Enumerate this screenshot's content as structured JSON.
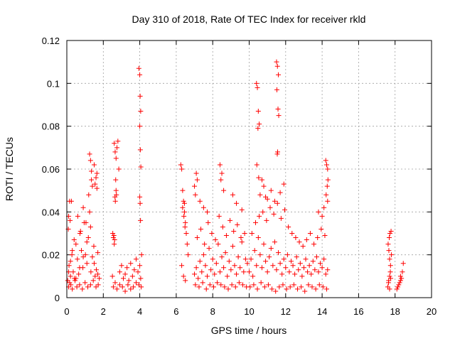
{
  "chart_data": {
    "type": "scatter",
    "title": "Day 310 of 2018, Rate Of TEC Index for receiver rkld",
    "xlabel": "GPS time / hours",
    "ylabel": "ROTI / TECUs",
    "xlim": [
      0,
      20
    ],
    "ylim": [
      0,
      0.12
    ],
    "x_ticks": [
      0,
      2,
      4,
      6,
      8,
      10,
      12,
      14,
      16,
      18,
      20
    ],
    "x_tick_labels": [
      "0",
      "2",
      "4",
      "6",
      "8",
      "10",
      "12",
      "14",
      "16",
      "18",
      "20"
    ],
    "y_ticks": [
      0,
      0.02,
      0.04,
      0.06,
      0.08,
      0.1,
      0.12
    ],
    "y_tick_labels": [
      "0",
      "0.02",
      "0.04",
      "0.06",
      "0.08",
      "0.1",
      "0.12"
    ],
    "grid": true,
    "marker": "+",
    "marker_color": "#ff0000",
    "series": [
      {
        "name": "ROTI",
        "x": [
          0.05,
          0.12,
          0.2,
          0.28,
          0.35,
          0.42,
          0.5,
          0.58,
          0.65,
          0.72,
          0.8,
          0.88,
          0.95,
          1.02,
          1.1,
          1.18,
          1.25,
          1.32,
          1.4,
          1.48,
          1.55,
          1.62,
          1.7,
          1.78,
          0.1,
          0.15,
          0.22,
          0.3,
          0.45,
          0.55,
          0.7,
          0.85,
          1.0,
          1.15,
          1.3,
          1.45,
          1.6,
          1.72,
          0.08,
          0.18,
          0.25,
          0.4,
          0.6,
          0.75,
          0.9,
          1.05,
          1.2,
          1.35,
          1.5,
          1.65,
          0.1,
          0.2,
          0.3,
          0.5,
          0.7,
          0.9,
          1.1,
          1.3,
          1.5,
          1.7,
          1.25,
          1.3,
          1.35,
          1.4,
          1.55,
          1.6,
          1.65,
          0.15,
          0.1,
          2.5,
          2.55,
          2.6,
          2.65,
          2.7,
          2.75,
          2.8,
          2.85,
          2.9,
          3.0,
          3.1,
          3.2,
          3.3,
          3.4,
          3.5,
          3.6,
          3.7,
          3.8,
          3.9,
          4.0,
          4.05,
          4.1,
          2.55,
          2.65,
          2.75,
          2.9,
          3.05,
          3.2,
          3.35,
          3.5,
          3.65,
          3.8,
          3.95,
          4.08,
          2.52,
          2.58,
          2.62,
          2.66,
          2.7,
          2.6,
          2.68,
          2.72,
          2.64,
          3.95,
          4.0,
          4.02,
          4.05,
          4.0,
          4.03,
          4.06,
          4.0,
          4.02,
          4.04,
          6.25,
          6.3,
          6.35,
          6.4,
          6.45,
          6.5,
          6.55,
          6.6,
          6.65,
          6.3,
          6.4,
          6.5,
          6.45,
          6.35,
          6.42,
          6.48,
          7.0,
          7.1,
          7.2,
          7.3,
          7.4,
          7.5,
          7.6,
          7.7,
          7.8,
          7.9,
          8.0,
          8.1,
          8.2,
          8.3,
          8.4,
          8.5,
          8.6,
          8.7,
          8.8,
          8.9,
          9.0,
          9.1,
          9.2,
          9.3,
          9.4,
          9.5,
          9.6,
          9.7,
          9.8,
          9.9,
          7.05,
          7.25,
          7.45,
          7.65,
          7.85,
          8.05,
          8.25,
          8.45,
          8.65,
          8.85,
          9.05,
          9.25,
          9.45,
          9.65,
          9.85,
          7.15,
          7.35,
          7.55,
          7.75,
          7.95,
          8.15,
          8.35,
          8.55,
          8.75,
          8.95,
          9.15,
          9.35,
          9.55,
          9.75,
          7.0,
          7.05,
          7.1,
          7.15,
          7.3,
          7.5,
          7.7,
          8.4,
          8.5,
          8.45,
          8.6,
          9.1,
          9.3,
          9.6,
          10.0,
          10.1,
          10.2,
          10.3,
          10.4,
          10.5,
          10.6,
          10.7,
          10.8,
          10.9,
          11.0,
          11.1,
          11.2,
          11.3,
          11.4,
          11.5,
          11.6,
          11.7,
          11.8,
          11.9,
          12.0,
          12.1,
          12.2,
          12.3,
          12.4,
          12.5,
          12.6,
          12.7,
          12.8,
          12.9,
          13.0,
          13.1,
          13.2,
          13.3,
          13.4,
          13.5,
          13.6,
          13.7,
          13.8,
          13.9,
          14.0,
          14.1,
          14.2,
          14.3,
          10.05,
          10.25,
          10.45,
          10.65,
          10.85,
          11.05,
          11.25,
          11.45,
          11.65,
          11.85,
          12.05,
          12.25,
          12.45,
          12.65,
          12.85,
          13.05,
          13.25,
          13.45,
          13.65,
          13.85,
          14.05,
          14.25,
          10.15,
          10.35,
          10.55,
          10.75,
          10.95,
          11.15,
          11.35,
          11.55,
          11.75,
          11.95,
          12.15,
          12.35,
          12.55,
          12.75,
          12.95,
          13.15,
          13.35,
          13.55,
          13.75,
          13.95,
          14.15,
          10.4,
          10.45,
          10.5,
          10.55,
          10.48,
          10.42,
          10.52,
          11.5,
          11.55,
          11.6,
          11.52,
          11.58,
          11.62,
          11.56,
          11.54,
          10.6,
          10.8,
          11.0,
          11.2,
          11.4,
          11.7,
          11.9,
          10.7,
          10.9,
          13.8,
          14.0,
          14.1,
          14.2,
          14.25,
          14.3,
          14.32,
          14.28,
          14.22,
          14.3,
          17.6,
          17.65,
          17.7,
          17.75,
          17.8,
          17.62,
          17.68,
          17.72,
          17.78,
          17.66,
          17.7,
          17.74,
          17.64,
          17.76,
          17.7,
          18.1,
          18.2,
          18.3,
          18.4,
          18.15,
          18.25,
          18.35,
          18.45,
          18.3
        ],
        "y": [
          0.008,
          0.015,
          0.01,
          0.02,
          0.012,
          0.009,
          0.025,
          0.018,
          0.011,
          0.03,
          0.022,
          0.014,
          0.035,
          0.02,
          0.016,
          0.028,
          0.04,
          0.012,
          0.019,
          0.024,
          0.01,
          0.013,
          0.021,
          0.009,
          0.005,
          0.007,
          0.006,
          0.004,
          0.008,
          0.005,
          0.006,
          0.004,
          0.007,
          0.005,
          0.006,
          0.008,
          0.005,
          0.006,
          0.032,
          0.036,
          0.045,
          0.027,
          0.038,
          0.031,
          0.042,
          0.035,
          0.048,
          0.055,
          0.062,
          0.058,
          0.012,
          0.017,
          0.022,
          0.009,
          0.014,
          0.019,
          0.026,
          0.033,
          0.016,
          0.011,
          0.067,
          0.064,
          0.059,
          0.052,
          0.053,
          0.056,
          0.051,
          0.045,
          0.038,
          0.01,
          0.028,
          0.072,
          0.068,
          0.065,
          0.07,
          0.073,
          0.06,
          0.012,
          0.015,
          0.009,
          0.011,
          0.014,
          0.008,
          0.016,
          0.01,
          0.013,
          0.018,
          0.012,
          0.015,
          0.009,
          0.02,
          0.005,
          0.007,
          0.004,
          0.006,
          0.005,
          0.003,
          0.006,
          0.004,
          0.005,
          0.007,
          0.006,
          0.005,
          0.03,
          0.029,
          0.027,
          0.045,
          0.05,
          0.025,
          0.055,
          0.048,
          0.047,
          0.107,
          0.104,
          0.094,
          0.087,
          0.08,
          0.069,
          0.061,
          0.047,
          0.044,
          0.036,
          0.062,
          0.06,
          0.05,
          0.045,
          0.04,
          0.035,
          0.03,
          0.025,
          0.02,
          0.015,
          0.01,
          0.008,
          0.044,
          0.042,
          0.038,
          0.033,
          0.011,
          0.014,
          0.009,
          0.017,
          0.012,
          0.02,
          0.015,
          0.01,
          0.023,
          0.013,
          0.018,
          0.011,
          0.016,
          0.025,
          0.012,
          0.019,
          0.014,
          0.021,
          0.01,
          0.017,
          0.013,
          0.024,
          0.015,
          0.011,
          0.019,
          0.014,
          0.026,
          0.012,
          0.018,
          0.016,
          0.006,
          0.005,
          0.007,
          0.004,
          0.006,
          0.005,
          0.007,
          0.006,
          0.005,
          0.004,
          0.006,
          0.005,
          0.007,
          0.006,
          0.005,
          0.028,
          0.032,
          0.025,
          0.035,
          0.03,
          0.027,
          0.038,
          0.033,
          0.029,
          0.036,
          0.031,
          0.034,
          0.028,
          0.03,
          0.052,
          0.048,
          0.058,
          0.055,
          0.045,
          0.042,
          0.04,
          0.062,
          0.058,
          0.055,
          0.05,
          0.048,
          0.044,
          0.041,
          0.012,
          0.018,
          0.01,
          0.022,
          0.015,
          0.028,
          0.02,
          0.014,
          0.025,
          0.017,
          0.012,
          0.019,
          0.023,
          0.015,
          0.026,
          0.013,
          0.021,
          0.016,
          0.011,
          0.018,
          0.014,
          0.02,
          0.012,
          0.017,
          0.015,
          0.011,
          0.019,
          0.013,
          0.016,
          0.01,
          0.014,
          0.018,
          0.012,
          0.015,
          0.011,
          0.017,
          0.013,
          0.019,
          0.012,
          0.016,
          0.014,
          0.018,
          0.011,
          0.013,
          0.005,
          0.006,
          0.004,
          0.007,
          0.005,
          0.006,
          0.004,
          0.003,
          0.005,
          0.006,
          0.004,
          0.005,
          0.006,
          0.004,
          0.005,
          0.003,
          0.006,
          0.005,
          0.004,
          0.006,
          0.005,
          0.004,
          0.03,
          0.035,
          0.038,
          0.04,
          0.036,
          0.042,
          0.039,
          0.044,
          0.037,
          0.041,
          0.033,
          0.03,
          0.028,
          0.026,
          0.024,
          0.027,
          0.03,
          0.025,
          0.028,
          0.032,
          0.029,
          0.1,
          0.098,
          0.087,
          0.081,
          0.079,
          0.062,
          0.056,
          0.11,
          0.108,
          0.104,
          0.097,
          0.088,
          0.085,
          0.068,
          0.067,
          0.048,
          0.052,
          0.046,
          0.05,
          0.045,
          0.049,
          0.053,
          0.055,
          0.047,
          0.04,
          0.038,
          0.042,
          0.064,
          0.062,
          0.06,
          0.055,
          0.052,
          0.048,
          0.045,
          0.005,
          0.008,
          0.01,
          0.015,
          0.02,
          0.025,
          0.028,
          0.03,
          0.031,
          0.022,
          0.018,
          0.012,
          0.007,
          0.009,
          0.004,
          0.004,
          0.006,
          0.008,
          0.012,
          0.005,
          0.007,
          0.009,
          0.016,
          0.01
        ]
      }
    ]
  }
}
